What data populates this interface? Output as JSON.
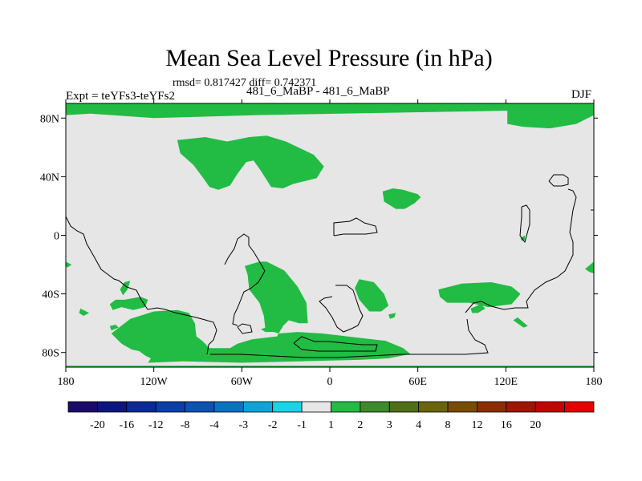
{
  "title": "Mean Sea Level Pressure (in hPa)",
  "stats_text": "rmsd= 0.817427 diff= 0.742371",
  "left_label": "Expt = teYFs3-teYFs2",
  "center_label": "481_6_MaBP - 481_6_MaBP",
  "right_label": "DJF",
  "chart_data": {
    "type": "heatmap",
    "projection": "cylindrical-equidistant",
    "xlim": [
      -180,
      180
    ],
    "ylim": [
      -90,
      90
    ],
    "x_ticks": [
      {
        "value": -180,
        "label": "180"
      },
      {
        "value": -120,
        "label": "120W"
      },
      {
        "value": -60,
        "label": "60W"
      },
      {
        "value": 0,
        "label": "0"
      },
      {
        "value": 60,
        "label": "60E"
      },
      {
        "value": 120,
        "label": "120E"
      },
      {
        "value": 180,
        "label": "180"
      }
    ],
    "y_ticks": [
      {
        "value": 80,
        "label": "80N"
      },
      {
        "value": 40,
        "label": "40N"
      },
      {
        "value": 0,
        "label": "0"
      },
      {
        "value": -40,
        "label": "40S"
      },
      {
        "value": -80,
        "label": "80S"
      }
    ],
    "background_interval": [
      -1,
      1
    ],
    "background_color": "#e6e6e6",
    "regions": [
      {
        "interval": [
          1,
          2
        ],
        "color": "#22bb44",
        "lonlat": [
          [
            -180,
            90
          ],
          [
            180,
            90
          ],
          [
            180,
            82
          ],
          [
            168,
            76
          ],
          [
            150,
            73
          ],
          [
            132,
            74
          ],
          [
            121,
            76
          ],
          [
            121,
            85
          ],
          [
            -50,
            82
          ],
          [
            -120,
            80
          ],
          [
            -163,
            83
          ],
          [
            -180,
            82
          ]
        ]
      },
      {
        "interval": [
          1,
          2
        ],
        "color": "#22bb44",
        "lonlat": [
          [
            -104,
            65
          ],
          [
            -85,
            67
          ],
          [
            -70,
            64
          ],
          [
            -55,
            67
          ],
          [
            -43,
            68
          ],
          [
            -30,
            64
          ],
          [
            -11,
            55
          ],
          [
            -4,
            47
          ],
          [
            -9,
            39
          ],
          [
            -25,
            35
          ],
          [
            -32,
            32
          ],
          [
            -40,
            33
          ],
          [
            -47,
            44
          ],
          [
            -52,
            51
          ],
          [
            -57,
            50
          ],
          [
            -63,
            42
          ],
          [
            -68,
            34
          ],
          [
            -76,
            31
          ],
          [
            -82,
            33
          ],
          [
            -87,
            40
          ],
          [
            -93,
            48
          ],
          [
            -102,
            56
          ]
        ]
      },
      {
        "interval": [
          1,
          2
        ],
        "color": "#22bb44",
        "lonlat": [
          [
            36,
            30
          ],
          [
            43,
            32
          ],
          [
            50,
            31
          ],
          [
            60,
            28
          ],
          [
            62,
            26
          ],
          [
            58,
            22
          ],
          [
            51,
            18
          ],
          [
            45,
            18
          ],
          [
            37,
            23
          ]
        ]
      },
      {
        "interval": [
          1,
          2
        ],
        "color": "#22bb44",
        "lonlat": [
          [
            -48,
            -18
          ],
          [
            -43,
            -18
          ],
          [
            -31,
            -24
          ],
          [
            -22,
            -35
          ],
          [
            -16,
            -46
          ],
          [
            -15,
            -60
          ],
          [
            -21,
            -60
          ],
          [
            -28,
            -58
          ],
          [
            -32,
            -62
          ],
          [
            -36,
            -69
          ],
          [
            -53,
            -71
          ],
          [
            -63,
            -74
          ],
          [
            -68,
            -77
          ],
          [
            -82,
            -77
          ],
          [
            -87,
            -72
          ],
          [
            -91,
            -69
          ],
          [
            -92,
            -60
          ],
          [
            -96,
            -53
          ],
          [
            -104,
            -51
          ],
          [
            -120,
            -52
          ],
          [
            -136,
            -57
          ],
          [
            -149,
            -67
          ],
          [
            -142,
            -74
          ],
          [
            -135,
            -78
          ],
          [
            -130,
            -79
          ],
          [
            -126,
            -82
          ],
          [
            -122,
            -84
          ],
          [
            -124,
            -87
          ],
          [
            -100,
            -86
          ],
          [
            -60,
            -87
          ],
          [
            -20,
            -86
          ],
          [
            20,
            -85
          ],
          [
            40,
            -84
          ],
          [
            55,
            -81
          ],
          [
            50,
            -77
          ],
          [
            38,
            -72
          ],
          [
            20,
            -70
          ],
          [
            -5,
            -67
          ],
          [
            -22,
            -66
          ],
          [
            -35,
            -67
          ],
          [
            -44,
            -64
          ],
          [
            -45,
            -55
          ],
          [
            -48,
            -46
          ],
          [
            -55,
            -37
          ],
          [
            -56,
            -27
          ],
          [
            -58,
            -21
          ]
        ]
      },
      {
        "interval": [
          1,
          2
        ],
        "color": "#22bb44",
        "lonlat": [
          [
            20,
            -30
          ],
          [
            30,
            -32
          ],
          [
            37,
            -40
          ],
          [
            40,
            -48
          ],
          [
            35,
            -52
          ],
          [
            27,
            -52
          ],
          [
            20,
            -44
          ],
          [
            17,
            -36
          ]
        ]
      },
      {
        "interval": [
          1,
          2
        ],
        "color": "#22bb44",
        "lonlat": [
          [
            74,
            -37
          ],
          [
            90,
            -33
          ],
          [
            110,
            -32
          ],
          [
            124,
            -35
          ],
          [
            130,
            -40
          ],
          [
            124,
            -47
          ],
          [
            108,
            -49
          ],
          [
            95,
            -46
          ],
          [
            80,
            -46
          ],
          [
            75,
            -42
          ]
        ]
      },
      {
        "interval": [
          1,
          2
        ],
        "color": "#22bb44",
        "lonlat": [
          [
            -180,
            -89
          ],
          [
            180,
            -89
          ],
          [
            180,
            -90
          ],
          [
            -180,
            -90
          ]
        ]
      },
      {
        "interval": [
          1,
          2
        ],
        "color": "#22bb44",
        "lonlat": [
          [
            -140,
            -32
          ],
          [
            -136,
            -31
          ],
          [
            -138,
            -37
          ],
          [
            -141,
            -41
          ],
          [
            -143,
            -37
          ]
        ]
      },
      {
        "interval": [
          1,
          2
        ],
        "color": "#22bb44",
        "lonlat": [
          [
            -124,
            -44
          ],
          [
            -129,
            -42
          ],
          [
            -140,
            -44
          ],
          [
            -146,
            -44
          ],
          [
            -150,
            -47
          ],
          [
            -148,
            -51
          ],
          [
            -142,
            -49
          ],
          [
            -134,
            -51
          ],
          [
            -126,
            -49
          ]
        ]
      },
      {
        "interval": [
          1,
          2
        ],
        "color": "#22bb44",
        "lonlat": [
          [
            -150,
            -62
          ],
          [
            -146,
            -61
          ],
          [
            -144,
            -63
          ],
          [
            -149,
            -65
          ]
        ]
      },
      {
        "interval": [
          1,
          2
        ],
        "color": "#22bb44",
        "lonlat": [
          [
            -170,
            -50
          ],
          [
            -164,
            -53
          ],
          [
            -168,
            -55
          ],
          [
            -171,
            -53
          ]
        ]
      },
      {
        "interval": [
          1,
          2
        ],
        "color": "#22bb44",
        "lonlat": [
          [
            -180,
            -18
          ],
          [
            -176,
            -20
          ],
          [
            -179,
            -22
          ],
          [
            -180,
            -21
          ]
        ]
      },
      {
        "interval": [
          1,
          2
        ],
        "color": "#22bb44",
        "lonlat": [
          [
            174,
            -23
          ],
          [
            180,
            -18
          ],
          [
            180,
            -26
          ],
          [
            177,
            -25
          ]
        ]
      },
      {
        "interval": [
          1,
          2
        ],
        "color": "#22bb44",
        "lonlat": [
          [
            130,
            -2
          ],
          [
            133,
            0
          ],
          [
            133,
            -3
          ],
          [
            131,
            -4
          ]
        ]
      },
      {
        "interval": [
          1,
          2
        ],
        "color": "#22bb44",
        "lonlat": [
          [
            96,
            -50
          ],
          [
            103,
            -47
          ],
          [
            106,
            -50
          ],
          [
            101,
            -53
          ],
          [
            97,
            -53
          ]
        ]
      },
      {
        "interval": [
          1,
          2
        ],
        "color": "#22bb44",
        "lonlat": [
          [
            40,
            -54
          ],
          [
            45,
            -53
          ],
          [
            44,
            -56
          ],
          [
            41,
            -57
          ]
        ]
      },
      {
        "interval": [
          1,
          2
        ],
        "color": "#22bb44",
        "lonlat": [
          [
            125,
            -58
          ],
          [
            128,
            -56
          ],
          [
            135,
            -62
          ],
          [
            132,
            -63
          ]
        ]
      },
      {
        "interval": [
          1,
          2
        ],
        "color": "#22bb44",
        "lonlat": [
          [
            -47,
            -64
          ],
          [
            -40,
            -62
          ],
          [
            -32,
            -63
          ],
          [
            -36,
            -66
          ],
          [
            -44,
            -66
          ]
        ]
      }
    ],
    "colorbar": {
      "orientation": "horizontal",
      "colors": [
        "#1c0a6b",
        "#0d167f",
        "#0b2a99",
        "#0a3ea8",
        "#0b52b4",
        "#0a72c4",
        "#0ba5d8",
        "#14d6e6",
        "#e6e6e6",
        "#22bb44",
        "#3d8a2a",
        "#4f6e18",
        "#6a650c",
        "#7a4b05",
        "#8b2d02",
        "#a01403",
        "#c40202",
        "#e60000"
      ],
      "labels": [
        "-20",
        "-16",
        "-12",
        "-8",
        "-4",
        "-3",
        "-2",
        "-1",
        "1",
        "2",
        "3",
        "4",
        "8",
        "12",
        "16",
        "20"
      ]
    }
  }
}
